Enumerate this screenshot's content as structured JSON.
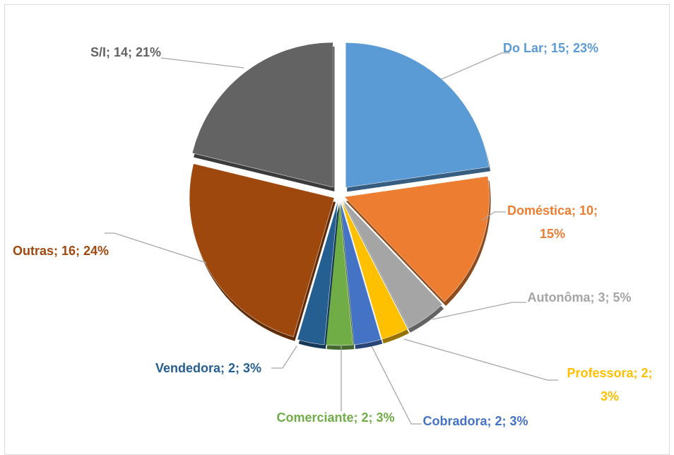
{
  "chart_data": {
    "type": "pie",
    "categories": [
      "Do Lar",
      "Doméstica",
      "Autonôma",
      "Professora",
      "Cobradora",
      "Comerciante",
      "Vendedora",
      "Outras",
      "S/I"
    ],
    "values": [
      15,
      10,
      3,
      2,
      2,
      2,
      2,
      16,
      14
    ],
    "value_labels": [
      "Do Lar; 15; 23%",
      "Doméstica; 10; 15%",
      "Autonôma; 3; 5%",
      "Professora; 2; 3%",
      "Cobradora; 2; 3%",
      "Comerciante; 2; 3%",
      "Vendedora; 2; 3%",
      "Outras; 16; 24%",
      "S/I; 14; 21%"
    ],
    "colors": [
      "#5b9bd5",
      "#ed7d31",
      "#a5a5a5",
      "#ffc000",
      "#4472c4",
      "#70ad47",
      "#255e91",
      "#9e480e",
      "#636363"
    ]
  }
}
